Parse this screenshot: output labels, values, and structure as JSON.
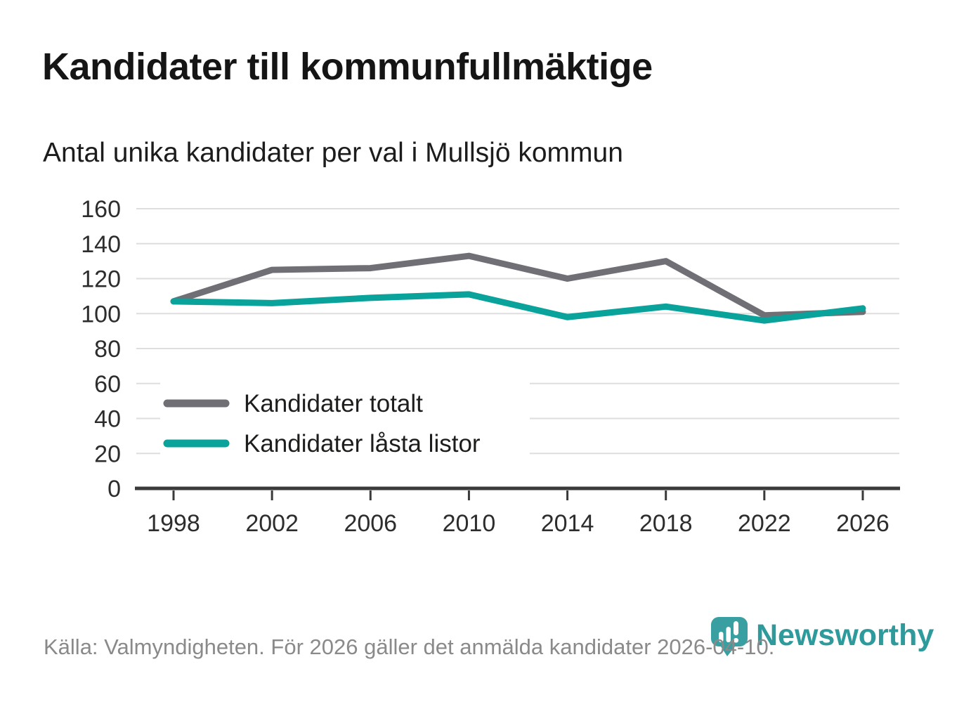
{
  "page": {
    "title": "Kandidater till kommunfullmäktige",
    "subtitle": "Antal unika kandidater per val i Mullsjö kommun",
    "source": "Källa: Valmyndigheten. För 2026 gäller det anmälda kandidater 2026-04-10.",
    "branding": {
      "name": "Newsworthy",
      "color": "#2e9a9c"
    }
  },
  "chart_data": {
    "type": "line",
    "title": "Kandidater till kommunfullmäktige",
    "subtitle": "Antal unika kandidater per val i Mullsjö kommun",
    "categories": [
      "1998",
      "2002",
      "2006",
      "2010",
      "2014",
      "2018",
      "2022",
      "2026"
    ],
    "series": [
      {
        "name": "Kandidater totalt",
        "color": "#706f75",
        "values": [
          107,
          125,
          126,
          133,
          120,
          130,
          99,
          101
        ]
      },
      {
        "name": "Kandidater låsta listor",
        "color": "#0aa39b",
        "values": [
          107,
          106,
          109,
          111,
          98,
          104,
          96,
          103
        ]
      }
    ],
    "xlabel": "",
    "ylabel": "",
    "ylim": [
      0,
      160
    ],
    "ytick_step": 20,
    "grid": true,
    "legend_position": "inside-bottom-left",
    "grid_color": "#dedede",
    "axis_color": "#3a3a3a",
    "tick_label_color": "#2d2d2d"
  }
}
